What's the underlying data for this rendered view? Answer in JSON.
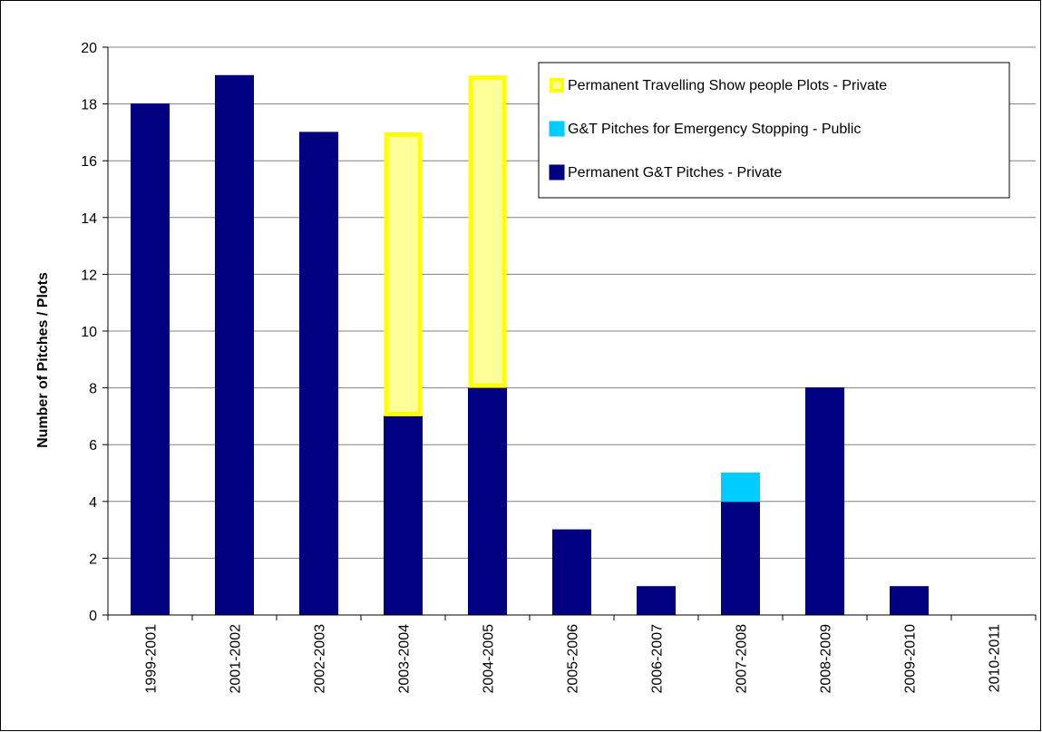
{
  "chart_data": {
    "type": "bar",
    "stacked": true,
    "title": "",
    "xlabel": "",
    "ylabel": "Number of Pitches / Plots",
    "ylim": [
      0,
      20
    ],
    "y_ticks": [
      0,
      2,
      4,
      6,
      8,
      10,
      12,
      14,
      16,
      18,
      20
    ],
    "grid": true,
    "legend_position": "top-right",
    "categories": [
      "1999-2001",
      "2001-2002",
      "2002-2003",
      "2003-2004",
      "2004-2005",
      "2005-2006",
      "2006-2007",
      "2007-2008",
      "2008-2009",
      "2009-2010",
      "2010-2011"
    ],
    "series": [
      {
        "name": "Permanent G&T Pitches - Private",
        "color": "#000080",
        "stroke": "#000080",
        "values": [
          18,
          19,
          17,
          7,
          8,
          3,
          1,
          4,
          8,
          1,
          0
        ]
      },
      {
        "name": "G&T Pitches for Emergency Stopping - Public",
        "color": "#00ccff",
        "stroke": "#00ccff",
        "values": [
          0,
          0,
          0,
          0,
          0,
          0,
          0,
          1,
          0,
          0,
          0
        ]
      },
      {
        "name": "Permanent Travelling Show people Plots - Private",
        "color": "#ffff99",
        "stroke": "#ffff00",
        "values": [
          0,
          0,
          0,
          10,
          11,
          0,
          0,
          0,
          0,
          0,
          0
        ]
      }
    ],
    "legend_order": [
      2,
      1,
      0
    ]
  }
}
